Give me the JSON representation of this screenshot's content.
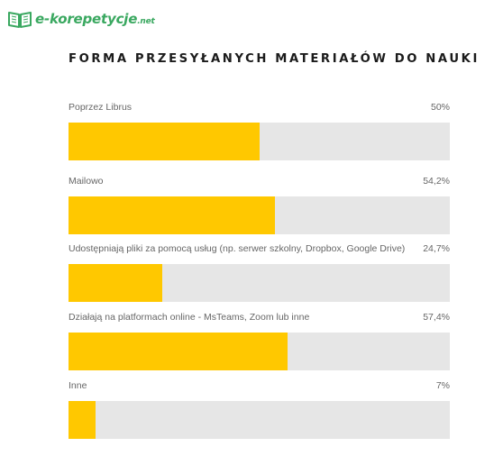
{
  "logo": {
    "main": "e-korepetycje",
    "suffix": ".net"
  },
  "chart_data": {
    "type": "bar",
    "orientation": "horizontal",
    "title": "FORMA PRZESYŁANYCH MATERIAŁÓW DO NAUKI",
    "xlim": [
      0,
      100
    ],
    "colors": {
      "fill": "#ffc800",
      "track": "#e6e6e6"
    },
    "categories": [
      "Poprzez Librus",
      "Mailowo",
      "Udostępniają pliki za pomocą usług (np. serwer szkolny, Dropbox, Google Drive)",
      "Działają na platformach online - MsTeams, Zoom lub inne",
      "Inne"
    ],
    "values": [
      50,
      54.2,
      24.7,
      57.4,
      7
    ],
    "value_labels": [
      "50%",
      "54,2%",
      "24,7%",
      "57,4%",
      "7%"
    ]
  }
}
